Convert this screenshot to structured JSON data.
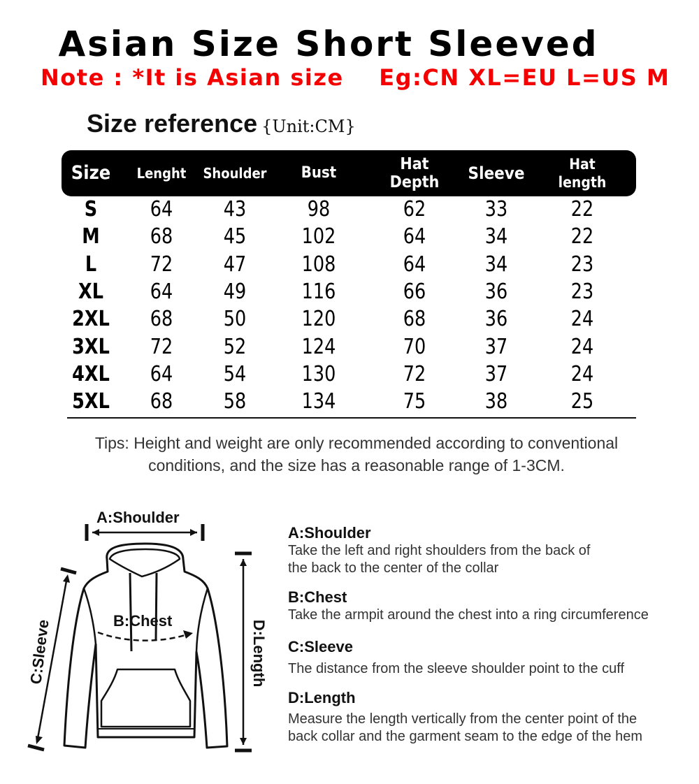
{
  "title": "Asian Size Short Sleeved",
  "note": "Note : *It is Asian size    Eg:CN XL=EU L=US M",
  "size_reference": {
    "label": "Size reference",
    "unit": "{Unit:CM}"
  },
  "table": {
    "headers": [
      "Size",
      "Lenght",
      "Shoulder",
      "Bust",
      "Hat\nDepth",
      "Sleeve",
      "Hat\nlength"
    ],
    "rows": [
      [
        "S",
        "64",
        "43",
        "98",
        "62",
        "33",
        "22"
      ],
      [
        "M",
        "68",
        "45",
        "102",
        "64",
        "34",
        "22"
      ],
      [
        "L",
        "72",
        "47",
        "108",
        "64",
        "34",
        "23"
      ],
      [
        "XL",
        "64",
        "49",
        "116",
        "66",
        "36",
        "23"
      ],
      [
        "2XL",
        "68",
        "50",
        "120",
        "68",
        "36",
        "24"
      ],
      [
        "3XL",
        "72",
        "52",
        "124",
        "70",
        "37",
        "24"
      ],
      [
        "4XL",
        "64",
        "54",
        "130",
        "72",
        "37",
        "24"
      ],
      [
        "5XL",
        "68",
        "58",
        "134",
        "75",
        "38",
        "25"
      ]
    ]
  },
  "tips": {
    "line1": "Tips: Height and weight are only recommended according to conventional",
    "line2": "conditions, and the size has a reasonable range of 1-3CM."
  },
  "diagram": {
    "shoulder": "A:Shoulder",
    "chest": "B:Chest",
    "sleeve": "C:Sleeve",
    "length": "D:Length"
  },
  "descriptions": [
    {
      "title": "A:Shoulder",
      "lines": [
        "Take the left and right shoulders from the back of",
        "the back to the center of the collar"
      ]
    },
    {
      "title": "B:Chest",
      "lines": [
        "Take the armpit around the chest into a ring circumference"
      ]
    },
    {
      "title": "C:Sleeve",
      "lines": [
        "The distance from the sleeve shoulder point to the cuff"
      ]
    },
    {
      "title": "D:Length",
      "lines": [
        "Measure the length vertically from the center point of the",
        "back collar and the garment seam to the edge of the hem"
      ]
    }
  ],
  "colors": {
    "note": "#f40000",
    "header_bg": "#000000"
  }
}
